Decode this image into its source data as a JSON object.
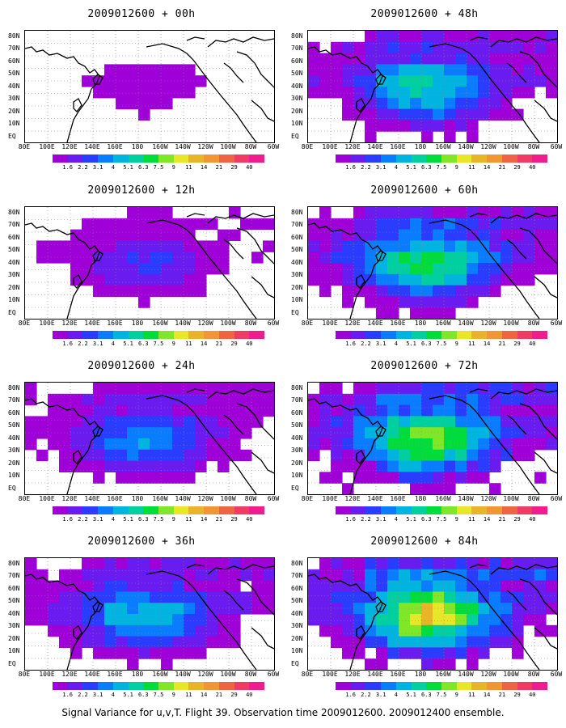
{
  "caption": "Signal Variance for u,v,T. Flight 39. Observation time 2009012600. 2009012400 ensemble.",
  "lat_labels": [
    "80N",
    "70N",
    "60N",
    "50N",
    "40N",
    "30N",
    "20N",
    "10N",
    "EQ"
  ],
  "lon_labels": [
    "80E",
    "100E",
    "120E",
    "140E",
    "160E",
    "180",
    "160W",
    "140W",
    "120W",
    "100W",
    "80W",
    "60W"
  ],
  "colorbar": {
    "labels": [
      "1.6",
      "2.2",
      "3.1",
      "4",
      "5.1",
      "6.3",
      "7.5",
      "9",
      "11",
      "14",
      "21",
      "29",
      "40"
    ],
    "colors": [
      "#a000d8",
      "#6a1cf0",
      "#2a3cff",
      "#0a7cff",
      "#00b4e0",
      "#00d0a0",
      "#00dc3c",
      "#80e628",
      "#e8e628",
      "#e8b428",
      "#f09632",
      "#f06446",
      "#f03c64",
      "#f01e8c"
    ]
  },
  "panels": [
    {
      "title": "2009012600 + 00h",
      "intensity": 0.15
    },
    {
      "title": "2009012600 + 12h",
      "intensity": 0.3
    },
    {
      "title": "2009012600 + 24h",
      "intensity": 0.45
    },
    {
      "title": "2009012600 + 36h",
      "intensity": 0.55
    },
    {
      "title": "2009012600 + 48h",
      "intensity": 0.6
    },
    {
      "title": "2009012600 + 60h",
      "intensity": 0.7
    },
    {
      "title": "2009012600 + 72h",
      "intensity": 0.8
    },
    {
      "title": "2009012600 + 84h",
      "intensity": 0.9
    }
  ]
}
